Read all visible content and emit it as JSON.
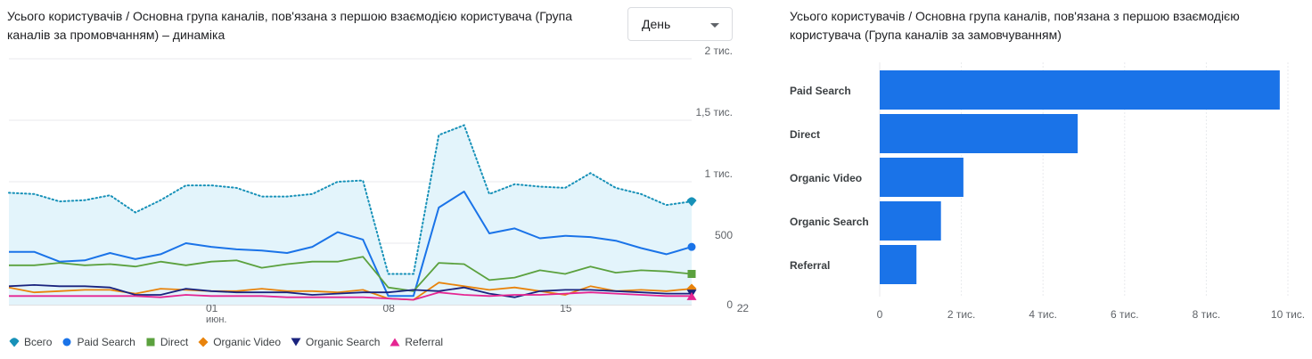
{
  "line_chart": {
    "title": "Усього користувачів / Основна група каналів, пов'язана з першою взаємодією користувача (Група каналів за промовчанням) – динаміка",
    "granularity": {
      "selected": "День"
    }
  },
  "bar_chart": {
    "title": "Усього користувачів / Основна група каналів, пов'язана з першою взаємодією користувача (Група каналів за замовчуванням)"
  },
  "chart_data": [
    {
      "type": "line",
      "x_tick_labels": [
        "01",
        "08",
        "15",
        "22"
      ],
      "x_sublabel": "июн.",
      "x_start_day": 24,
      "y_tick_labels": [
        "0",
        "500",
        "1 тис.",
        "1,5 тис.",
        "2 тис."
      ],
      "ylim": [
        0,
        2000
      ],
      "grid": true,
      "legend_position": "bottom",
      "series": [
        {
          "name": "Всего",
          "color": "#12A4D9",
          "style": "dotted-area",
          "marker": "pin",
          "values": [
            910,
            900,
            840,
            850,
            890,
            750,
            850,
            970,
            970,
            950,
            880,
            880,
            900,
            1000,
            1010,
            250,
            250,
            1380,
            1460,
            900,
            980,
            960,
            950,
            1070,
            950,
            900,
            810,
            840
          ]
        },
        {
          "name": "Paid Search",
          "color": "#1A73E8",
          "marker": "circle",
          "values": [
            430,
            430,
            350,
            360,
            420,
            370,
            410,
            500,
            470,
            450,
            440,
            420,
            470,
            590,
            530,
            70,
            70,
            790,
            920,
            580,
            620,
            540,
            560,
            550,
            520,
            460,
            410,
            470
          ]
        },
        {
          "name": "Direct",
          "color": "#5BA13E",
          "marker": "square",
          "values": [
            320,
            320,
            340,
            320,
            330,
            310,
            350,
            320,
            350,
            360,
            300,
            330,
            350,
            350,
            390,
            140,
            110,
            340,
            330,
            200,
            220,
            280,
            250,
            310,
            260,
            280,
            270,
            250
          ]
        },
        {
          "name": "Organic Video",
          "color": "#E8830C",
          "marker": "diamond",
          "values": [
            140,
            100,
            110,
            120,
            120,
            90,
            130,
            120,
            110,
            110,
            130,
            110,
            110,
            100,
            120,
            50,
            40,
            180,
            150,
            120,
            140,
            110,
            80,
            150,
            110,
            120,
            110,
            130
          ]
        },
        {
          "name": "Organic Search",
          "color": "#1A237E",
          "marker": "triangle-down",
          "values": [
            150,
            160,
            150,
            150,
            140,
            80,
            80,
            130,
            110,
            100,
            100,
            100,
            80,
            90,
            100,
            100,
            120,
            110,
            140,
            90,
            60,
            110,
            120,
            120,
            110,
            100,
            90,
            90
          ]
        },
        {
          "name": "Referral",
          "color": "#E52592",
          "marker": "triangle-up",
          "values": [
            70,
            70,
            70,
            70,
            70,
            70,
            60,
            80,
            70,
            70,
            70,
            60,
            60,
            60,
            60,
            50,
            40,
            100,
            80,
            70,
            80,
            80,
            90,
            100,
            90,
            80,
            70,
            70
          ]
        }
      ]
    },
    {
      "type": "bar",
      "orientation": "horizontal",
      "categories": [
        "Paid Search",
        "Direct",
        "Organic Video",
        "Organic Search",
        "Referral"
      ],
      "values": [
        9800,
        4850,
        2050,
        1500,
        900
      ],
      "color": "#1A73E8",
      "x_tick_labels": [
        "0",
        "2 тис.",
        "4 тис.",
        "6 тис.",
        "8 тис.",
        "10 тис."
      ],
      "xlim": [
        0,
        10000
      ],
      "grid": true
    }
  ]
}
